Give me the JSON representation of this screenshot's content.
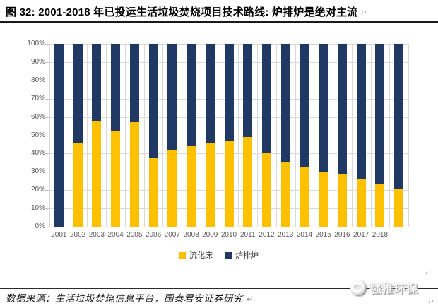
{
  "title": {
    "text": "图 32: 2001-2018 年已投运生活垃圾焚烧项目技术路线: 炉排炉是绝对主流",
    "return_mark": "↵"
  },
  "chart_data": {
    "type": "bar",
    "subtype": "stacked-100-percent-column",
    "title": "2001-2018 年已投运生活垃圾焚烧项目技术路线",
    "xlabel": "",
    "ylabel": "",
    "ylim": [
      0,
      100
    ],
    "ytick_step": 10,
    "ytick_labels": [
      "0%",
      "10%",
      "20%",
      "30%",
      "40%",
      "50%",
      "60%",
      "70%",
      "80%",
      "90%",
      "100%"
    ],
    "grid": "both",
    "legend_position": "bottom",
    "categories": [
      "2001",
      "2002",
      "2003",
      "2004",
      "2005",
      "2006",
      "2007",
      "2008",
      "2009",
      "2010",
      "2011",
      "2012",
      "2013",
      "2014",
      "2015",
      "2016",
      "2017",
      "2018",
      ""
    ],
    "series": [
      {
        "name": "流化床",
        "color": "#FFC000",
        "values": [
          0,
          46,
          58,
          52,
          57,
          38,
          42,
          44,
          46,
          47,
          49,
          40,
          35,
          33,
          30,
          29,
          26,
          23,
          21
        ]
      },
      {
        "name": "炉排炉",
        "color": "#1F3864",
        "values": [
          100,
          54,
          42,
          48,
          43,
          62,
          58,
          56,
          54,
          53,
          51,
          60,
          65,
          67,
          70,
          71,
          74,
          77,
          79
        ]
      }
    ]
  },
  "footer": {
    "source_text": "数据来源：生活垃圾焚烧信息平台，国泰君安证券研究",
    "return_mark": "↵"
  },
  "brand": {
    "logo_text": "强推环保"
  },
  "colors": {
    "bar_yellow": "#FFC000",
    "bar_navy": "#1F3864",
    "gridline": "#D9D9D9",
    "axis_text": "#595959",
    "title_text": "#000000"
  }
}
